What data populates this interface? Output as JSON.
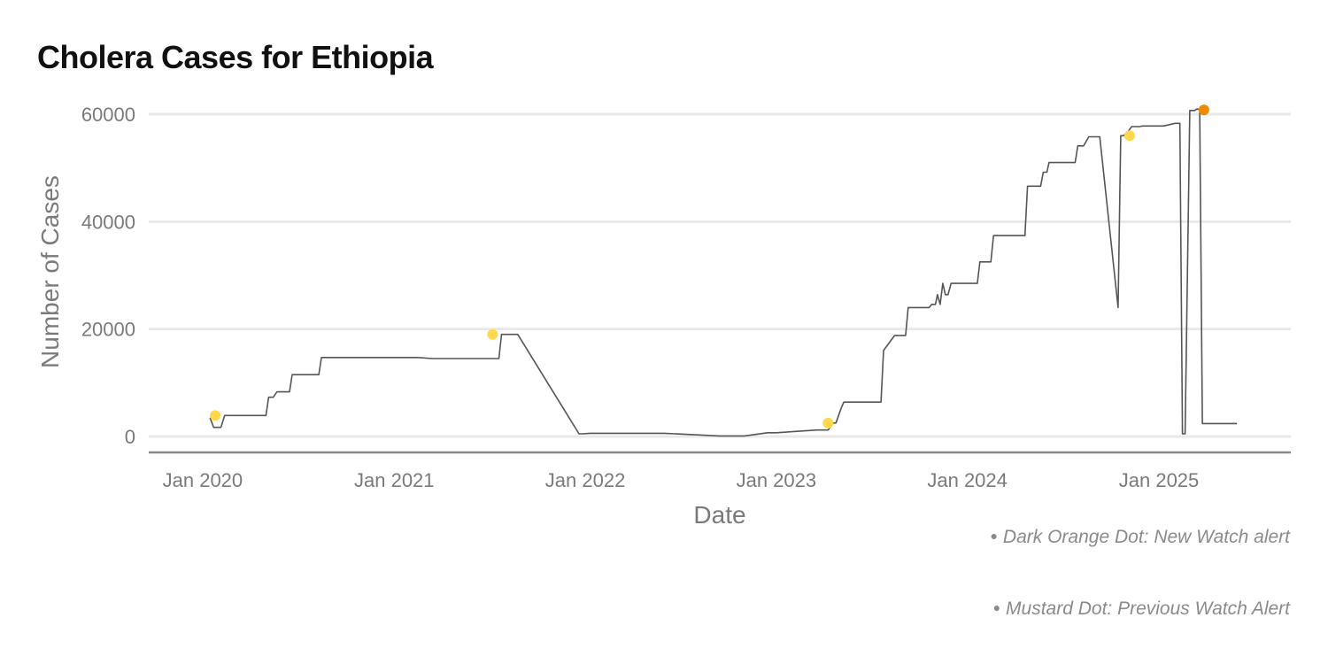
{
  "chart_data": {
    "type": "line",
    "title": "Cholera Cases for Ethiopia",
    "xlabel": "Date",
    "ylabel": "Number of Cases",
    "x_ticks": [
      "Jan 2020",
      "Jan 2021",
      "Jan 2022",
      "Jan 2023",
      "Jan 2024",
      "Jan 2025"
    ],
    "y_ticks": [
      0,
      20000,
      40000,
      60000
    ],
    "ylim": [
      0,
      62000
    ],
    "xlim": [
      "2019-09-20",
      "2025-09-10"
    ],
    "grid": true,
    "line_color": "#555555",
    "series": [
      {
        "x": [
          "2020-01-15",
          "2020-01-22",
          "2020-02-05",
          "2020-02-12",
          "2020-02-19",
          "2020-03-01",
          "2020-05-01",
          "2020-05-06",
          "2020-05-15",
          "2020-05-22",
          "2020-06-15",
          "2020-06-20",
          "2020-08-10",
          "2020-08-15",
          "2021-02-15",
          "2021-03-15",
          "2021-07-20",
          "2021-07-25",
          "2021-07-30",
          "2021-08-25",
          "2021-12-20",
          "2021-12-27",
          "2022-01-10",
          "2022-06-01",
          "2022-09-15",
          "2022-11-01",
          "2022-12-15",
          "2023-01-01",
          "2023-03-20",
          "2023-04-10",
          "2023-04-20",
          "2023-04-25",
          "2023-05-05",
          "2023-05-10",
          "2023-07-20",
          "2023-07-25",
          "2023-08-15",
          "2023-08-20",
          "2023-09-05",
          "2023-09-10",
          "2023-10-20",
          "2023-10-25",
          "2023-11-01",
          "2023-11-05",
          "2023-11-10",
          "2023-11-15",
          "2023-11-20",
          "2023-11-25",
          "2023-12-01",
          "2024-01-20",
          "2024-01-25",
          "2024-02-15",
          "2024-02-20",
          "2024-03-15",
          "2024-04-20",
          "2024-04-25",
          "2024-05-20",
          "2024-05-25",
          "2024-06-01",
          "2024-06-05",
          "2024-06-15",
          "2024-06-20",
          "2024-07-25",
          "2024-07-30",
          "2024-08-10",
          "2024-08-20",
          "2024-08-25",
          "2024-09-10",
          "2024-10-15",
          "2024-10-20",
          "2024-10-25",
          "2024-11-01",
          "2024-11-10",
          "2024-11-25",
          "2024-12-01",
          "2025-01-10",
          "2025-02-01",
          "2025-02-10",
          "2025-02-15",
          "2025-02-20",
          "2025-03-01",
          "2025-03-10",
          "2025-03-15",
          "2025-03-20",
          "2025-03-25",
          "2025-05-30"
        ],
        "y": [
          3500,
          1700,
          1700,
          3900,
          3900,
          3900,
          3900,
          7300,
          7300,
          8300,
          8300,
          11500,
          11500,
          14700,
          14700,
          14500,
          14500,
          19000,
          19000,
          19000,
          500,
          500,
          600,
          600,
          100,
          100,
          700,
          700,
          1200,
          1200,
          2500,
          2500,
          5300,
          6400,
          6400,
          16000,
          18800,
          18800,
          18800,
          24000,
          24000,
          24600,
          24600,
          26400,
          24600,
          28500,
          26400,
          26400,
          28500,
          28500,
          32500,
          32500,
          37400,
          37400,
          37400,
          46600,
          46600,
          49200,
          49200,
          51000,
          51000,
          51000,
          51000,
          54100,
          54100,
          55800,
          55800,
          55800,
          24000,
          56000,
          56000,
          56500,
          57700,
          57700,
          57800,
          57800,
          58300,
          58300,
          500,
          500,
          60700,
          60700,
          61000,
          60800,
          2400,
          2400
        ]
      }
    ],
    "alerts": [
      {
        "type": "previous",
        "x": "2020-01-25",
        "y": 3900
      },
      {
        "type": "previous",
        "x": "2021-07-08",
        "y": 19000
      },
      {
        "type": "previous",
        "x": "2023-04-10",
        "y": 2500
      },
      {
        "type": "previous",
        "x": "2024-11-06",
        "y": 56000
      },
      {
        "type": "new",
        "x": "2025-03-28",
        "y": 60800
      }
    ],
    "colors": {
      "new_watch": "#f08a00",
      "previous_watch": "#ffd84d",
      "grid": "#e9e9e9",
      "axis": "#8a8a8a"
    }
  },
  "legend": {
    "new_watch_label": "Dark Orange Dot: New Watch alert",
    "previous_watch_label": "Mustard Dot: Previous Watch Alert",
    "bullet": "●"
  }
}
